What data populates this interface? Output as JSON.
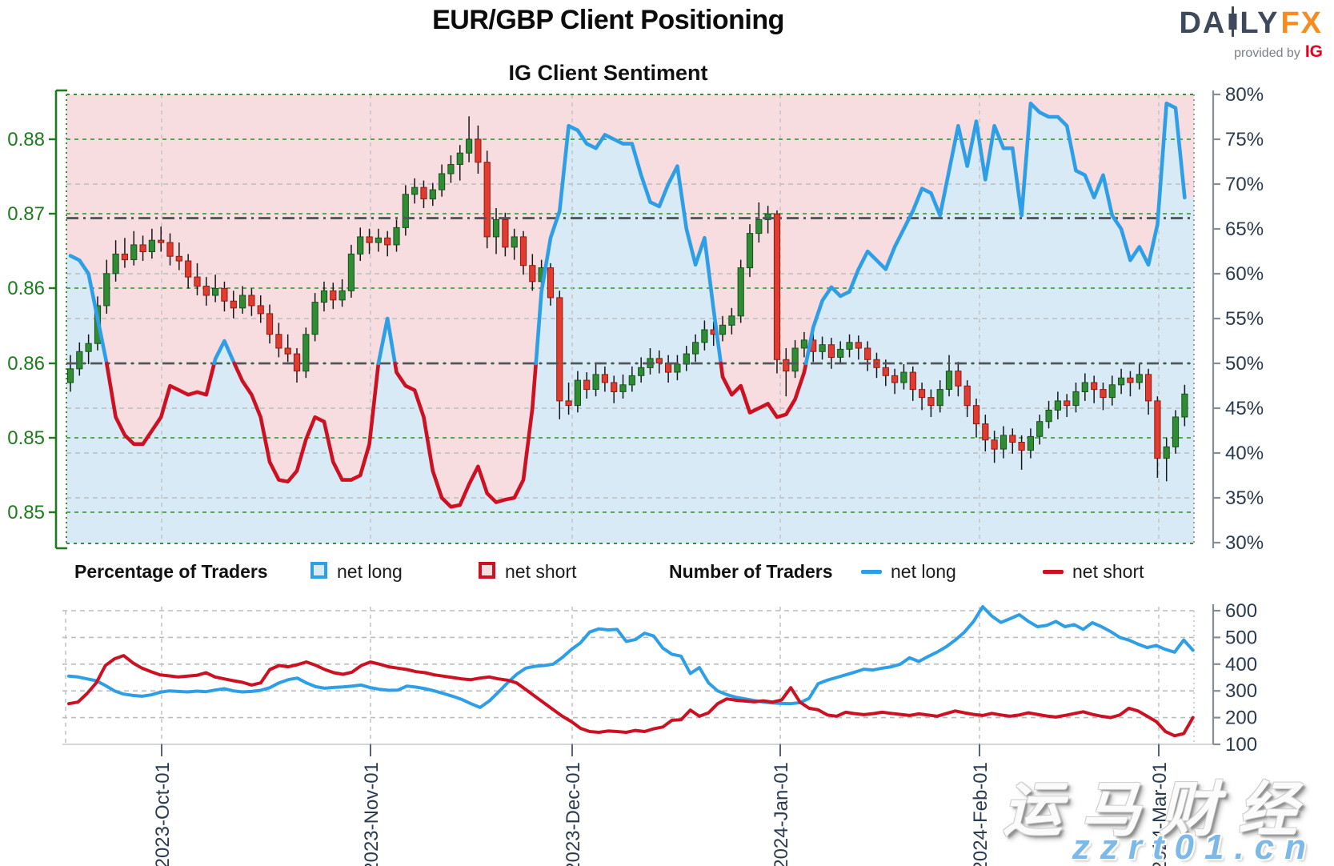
{
  "header": {
    "title": "EUR/GBP Client Positioning",
    "subtitle": "IG Client Sentiment"
  },
  "logo": {
    "part1": "DA",
    "part2": "LY",
    "part3": "FX",
    "provided": "provided by",
    "ig": "IG"
  },
  "legend": {
    "pct_heading": "Percentage of Traders",
    "pct_net_long": "net long",
    "pct_net_short": "net short",
    "num_heading": "Number of Traders",
    "num_net_long": "net long",
    "num_net_short": "net short"
  },
  "watermark": {
    "brand": "运马财经",
    "site": "zzrt01.cn"
  },
  "colors": {
    "net_long_blue": "#2e9fe6",
    "net_short_red": "#cc1122",
    "candle_up": "#2f8b34",
    "candle_down": "#e23c30",
    "bg_above_line_pink": "#f8dde0",
    "bg_below_line_blue": "#d8eaf6",
    "price_axis_green": "#1e7a1e",
    "pct_axis_navy": "#2b3b4f",
    "logo_slate": "#3e4a5b",
    "logo_orange": "#f68b1f",
    "ig_red": "#e8001c"
  },
  "chart_data": [
    {
      "type": "candlestick+line",
      "title": "IG Client Sentiment",
      "price_axis": {
        "side": "left",
        "tick_labels": [
          "0.88",
          "0.87",
          "0.86",
          "0.86",
          "0.85",
          "0.85"
        ]
      },
      "percent_axis": {
        "side": "right",
        "ticks": [
          80,
          75,
          70,
          65,
          60,
          55,
          50,
          45,
          40,
          35,
          30
        ],
        "suffix": "%"
      },
      "x_axis": {
        "tick_labels": [
          "2023-Oct-01",
          "2023-Nov-01",
          "2023-Dec-01",
          "2024-Jan-01",
          "2024-Feb-01",
          "2024-Mar-01"
        ]
      },
      "reference_lines": [
        {
          "axis": "percent",
          "value": 50
        },
        {
          "axis": "percent",
          "value": 66.2
        }
      ],
      "ohlc": [
        [
          0.8588,
          0.8612,
          0.858,
          0.86
        ],
        [
          0.86,
          0.8623,
          0.8594,
          0.8615
        ],
        [
          0.8615,
          0.863,
          0.8604,
          0.8622
        ],
        [
          0.8622,
          0.8663,
          0.8616,
          0.8655
        ],
        [
          0.8655,
          0.8695,
          0.8648,
          0.8683
        ],
        [
          0.8683,
          0.8712,
          0.8676,
          0.87
        ],
        [
          0.87,
          0.8714,
          0.8688,
          0.8695
        ],
        [
          0.8695,
          0.872,
          0.869,
          0.8708
        ],
        [
          0.8708,
          0.8716,
          0.8694,
          0.8702
        ],
        [
          0.8702,
          0.8722,
          0.8696,
          0.8712
        ],
        [
          0.8712,
          0.8724,
          0.8702,
          0.871
        ],
        [
          0.871,
          0.8718,
          0.869,
          0.8698
        ],
        [
          0.8698,
          0.871,
          0.8686,
          0.8694
        ],
        [
          0.8694,
          0.87,
          0.867,
          0.868
        ],
        [
          0.868,
          0.8692,
          0.8664,
          0.8672
        ],
        [
          0.8672,
          0.868,
          0.8655,
          0.8664
        ],
        [
          0.8664,
          0.8682,
          0.8658,
          0.867
        ],
        [
          0.867,
          0.8676,
          0.865,
          0.8659
        ],
        [
          0.8659,
          0.8668,
          0.8644,
          0.8653
        ],
        [
          0.8653,
          0.8672,
          0.8648,
          0.8664
        ],
        [
          0.8664,
          0.867,
          0.8646,
          0.8655
        ],
        [
          0.8655,
          0.8664,
          0.864,
          0.8648
        ],
        [
          0.8648,
          0.8656,
          0.8622,
          0.863
        ],
        [
          0.863,
          0.864,
          0.861,
          0.8618
        ],
        [
          0.8618,
          0.863,
          0.8606,
          0.8613
        ],
        [
          0.8613,
          0.8618,
          0.8588,
          0.8598
        ],
        [
          0.8598,
          0.8636,
          0.8592,
          0.863
        ],
        [
          0.863,
          0.8666,
          0.8624,
          0.8658
        ],
        [
          0.8658,
          0.8676,
          0.865,
          0.8668
        ],
        [
          0.8668,
          0.8675,
          0.8652,
          0.866
        ],
        [
          0.866,
          0.8678,
          0.8654,
          0.8668
        ],
        [
          0.8668,
          0.8708,
          0.8662,
          0.87
        ],
        [
          0.87,
          0.8723,
          0.8694,
          0.8715
        ],
        [
          0.8715,
          0.8722,
          0.87,
          0.871
        ],
        [
          0.871,
          0.8722,
          0.8702,
          0.8714
        ],
        [
          0.8714,
          0.872,
          0.8698,
          0.8708
        ],
        [
          0.8708,
          0.873,
          0.8702,
          0.8723
        ],
        [
          0.8723,
          0.876,
          0.8716,
          0.8752
        ],
        [
          0.8752,
          0.8766,
          0.8744,
          0.8758
        ],
        [
          0.8758,
          0.8764,
          0.874,
          0.8748
        ],
        [
          0.8748,
          0.8762,
          0.8742,
          0.8756
        ],
        [
          0.8756,
          0.8778,
          0.875,
          0.877
        ],
        [
          0.877,
          0.8786,
          0.8762,
          0.8778
        ],
        [
          0.8778,
          0.8795,
          0.8764,
          0.8788
        ],
        [
          0.8788,
          0.882,
          0.878,
          0.88
        ],
        [
          0.88,
          0.8812,
          0.877,
          0.878
        ],
        [
          0.878,
          0.879,
          0.8705,
          0.8715
        ],
        [
          0.8715,
          0.874,
          0.87,
          0.873
        ],
        [
          0.873,
          0.8736,
          0.8698,
          0.8706
        ],
        [
          0.8706,
          0.8722,
          0.8695,
          0.8715
        ],
        [
          0.8715,
          0.872,
          0.8682,
          0.869
        ],
        [
          0.869,
          0.87,
          0.8668,
          0.8676
        ],
        [
          0.8676,
          0.8695,
          0.866,
          0.8688
        ],
        [
          0.8688,
          0.8692,
          0.8655,
          0.8662
        ],
        [
          0.8662,
          0.8668,
          0.8556,
          0.8572
        ],
        [
          0.8572,
          0.8588,
          0.856,
          0.8568
        ],
        [
          0.8568,
          0.8598,
          0.8562,
          0.859
        ],
        [
          0.859,
          0.8597,
          0.8574,
          0.8582
        ],
        [
          0.8582,
          0.8604,
          0.8576,
          0.8595
        ],
        [
          0.8595,
          0.8602,
          0.858,
          0.8588
        ],
        [
          0.8588,
          0.8594,
          0.857,
          0.858
        ],
        [
          0.858,
          0.8595,
          0.8574,
          0.8586
        ],
        [
          0.8586,
          0.8602,
          0.858,
          0.8594
        ],
        [
          0.8594,
          0.861,
          0.8588,
          0.8601
        ],
        [
          0.8601,
          0.8618,
          0.8595,
          0.8609
        ],
        [
          0.8609,
          0.8616,
          0.8596,
          0.8605
        ],
        [
          0.8605,
          0.8612,
          0.8588,
          0.8597
        ],
        [
          0.8597,
          0.8612,
          0.859,
          0.8604
        ],
        [
          0.8604,
          0.862,
          0.8598,
          0.8613
        ],
        [
          0.8613,
          0.863,
          0.8606,
          0.8623
        ],
        [
          0.8623,
          0.8642,
          0.8616,
          0.8634
        ],
        [
          0.8634,
          0.8641,
          0.862,
          0.863
        ],
        [
          0.863,
          0.8646,
          0.8624,
          0.8638
        ],
        [
          0.8638,
          0.8653,
          0.863,
          0.8646
        ],
        [
          0.8646,
          0.8695,
          0.864,
          0.8688
        ],
        [
          0.8688,
          0.8726,
          0.868,
          0.8718
        ],
        [
          0.8718,
          0.8745,
          0.871,
          0.873
        ],
        [
          0.873,
          0.8742,
          0.8718,
          0.8735
        ],
        [
          0.8735,
          0.8738,
          0.8596,
          0.8608
        ],
        [
          0.8608,
          0.8618,
          0.8576,
          0.8598
        ],
        [
          0.8598,
          0.8625,
          0.8592,
          0.8618
        ],
        [
          0.8618,
          0.8632,
          0.861,
          0.8625
        ],
        [
          0.8625,
          0.8631,
          0.8606,
          0.8615
        ],
        [
          0.8615,
          0.8628,
          0.8608,
          0.8621
        ],
        [
          0.8621,
          0.8627,
          0.86,
          0.861
        ],
        [
          0.861,
          0.8624,
          0.8604,
          0.8617
        ],
        [
          0.8617,
          0.863,
          0.861,
          0.8623
        ],
        [
          0.8623,
          0.8629,
          0.8608,
          0.8618
        ],
        [
          0.8618,
          0.8624,
          0.8598,
          0.8608
        ],
        [
          0.8608,
          0.8614,
          0.8592,
          0.8601
        ],
        [
          0.8601,
          0.8608,
          0.8585,
          0.8594
        ],
        [
          0.8594,
          0.86,
          0.8578,
          0.8588
        ],
        [
          0.8588,
          0.8604,
          0.8582,
          0.8597
        ],
        [
          0.8597,
          0.8602,
          0.8572,
          0.8582
        ],
        [
          0.8582,
          0.8588,
          0.8564,
          0.8575
        ],
        [
          0.8575,
          0.8582,
          0.8558,
          0.8568
        ],
        [
          0.8568,
          0.859,
          0.8562,
          0.8582
        ],
        [
          0.8582,
          0.8612,
          0.8576,
          0.8598
        ],
        [
          0.8598,
          0.8606,
          0.8576,
          0.8585
        ],
        [
          0.8585,
          0.859,
          0.8558,
          0.8568
        ],
        [
          0.8568,
          0.8574,
          0.854,
          0.8552
        ],
        [
          0.8552,
          0.856,
          0.8528,
          0.8538
        ],
        [
          0.8538,
          0.8546,
          0.8518,
          0.853
        ],
        [
          0.853,
          0.855,
          0.8522,
          0.8542
        ],
        [
          0.8542,
          0.8548,
          0.8526,
          0.8536
        ],
        [
          0.8536,
          0.8542,
          0.8512,
          0.8529
        ],
        [
          0.8529,
          0.8548,
          0.8522,
          0.8541
        ],
        [
          0.8541,
          0.856,
          0.8534,
          0.8554
        ],
        [
          0.8554,
          0.8572,
          0.8548,
          0.8564
        ],
        [
          0.8564,
          0.858,
          0.8556,
          0.8572
        ],
        [
          0.8572,
          0.8578,
          0.8558,
          0.8568
        ],
        [
          0.8568,
          0.8588,
          0.8562,
          0.858
        ],
        [
          0.858,
          0.8596,
          0.8572,
          0.8588
        ],
        [
          0.8588,
          0.8594,
          0.857,
          0.8582
        ],
        [
          0.8582,
          0.8588,
          0.8564,
          0.8575
        ],
        [
          0.8575,
          0.8594,
          0.8568,
          0.8586
        ],
        [
          0.8586,
          0.86,
          0.8578,
          0.8592
        ],
        [
          0.8592,
          0.8598,
          0.8576,
          0.8588
        ],
        [
          0.8588,
          0.8604,
          0.8582,
          0.8595
        ],
        [
          0.8595,
          0.86,
          0.856,
          0.8572
        ],
        [
          0.8572,
          0.8576,
          0.8505,
          0.8522
        ],
        [
          0.8522,
          0.854,
          0.8502,
          0.8532
        ],
        [
          0.8532,
          0.8564,
          0.8526,
          0.8558
        ],
        [
          0.8558,
          0.8586,
          0.855,
          0.8578
        ]
      ],
      "sentiment_pct": [
        62,
        61.5,
        60,
        55,
        50,
        44,
        42,
        41,
        41,
        42.5,
        44,
        47.5,
        47,
        46.5,
        46.8,
        46.5,
        50.5,
        52.5,
        50.2,
        48,
        46.5,
        44,
        39,
        37,
        36.8,
        38,
        41.5,
        44,
        43.5,
        39,
        37,
        37,
        37.5,
        41,
        50,
        55,
        49,
        47.5,
        47,
        44,
        38,
        35,
        34,
        34.2,
        36.5,
        38.5,
        35.5,
        34.5,
        34.8,
        35,
        37,
        45,
        58,
        64,
        67,
        76.5,
        76,
        74.5,
        74,
        75.5,
        75,
        74.5,
        74.5,
        71,
        68,
        67.5,
        70,
        72,
        65,
        61,
        64,
        56,
        48.5,
        46.5,
        47.5,
        44.5,
        45,
        45.5,
        44,
        44.3,
        46,
        49,
        54,
        57,
        58.5,
        57.5,
        58,
        60.5,
        62.5,
        61.5,
        60.5,
        63,
        65,
        67,
        69.5,
        69,
        66.5,
        71.5,
        76.5,
        72,
        77,
        70.5,
        76.5,
        74,
        74,
        66.5,
        79,
        78,
        77.5,
        77.5,
        76.5,
        71.5,
        71,
        68.5,
        71,
        66.5,
        65,
        61.5,
        63,
        61,
        65.5,
        79,
        78.5,
        68.5
      ]
    },
    {
      "type": "line",
      "title": "Number of Traders",
      "y_axis": {
        "side": "right",
        "ticks": [
          600,
          500,
          400,
          300,
          200,
          100
        ]
      },
      "series": [
        {
          "name": "net long",
          "values": [
            355,
            352,
            345,
            338,
            320,
            300,
            288,
            283,
            280,
            285,
            295,
            300,
            298,
            296,
            299,
            297,
            303,
            308,
            300,
            296,
            298,
            302,
            312,
            330,
            342,
            348,
            330,
            316,
            310,
            313,
            315,
            318,
            322,
            312,
            306,
            302,
            303,
            318,
            314,
            308,
            300,
            290,
            280,
            268,
            252,
            238,
            262,
            295,
            330,
            362,
            385,
            392,
            395,
            400,
            425,
            455,
            480,
            520,
            532,
            528,
            530,
            485,
            492,
            516,
            505,
            460,
            437,
            430,
            365,
            387,
            330,
            300,
            286,
            276,
            270,
            264,
            258,
            255,
            253,
            252,
            256,
            272,
            327,
            340,
            350,
            360,
            370,
            381,
            378,
            385,
            390,
            400,
            424,
            410,
            428,
            445,
            465,
            490,
            520,
            560,
            615,
            580,
            556,
            570,
            585,
            560,
            540,
            545,
            560,
            540,
            548,
            530,
            555,
            540,
            522,
            500,
            490,
            475,
            462,
            470,
            455,
            445,
            490,
            452
          ]
        },
        {
          "name": "net short",
          "values": [
            252,
            258,
            290,
            330,
            395,
            420,
            432,
            405,
            385,
            372,
            360,
            356,
            352,
            355,
            358,
            368,
            352,
            345,
            338,
            332,
            322,
            330,
            380,
            395,
            390,
            398,
            408,
            396,
            380,
            368,
            362,
            370,
            395,
            408,
            400,
            390,
            385,
            380,
            372,
            368,
            360,
            355,
            350,
            345,
            342,
            348,
            352,
            345,
            340,
            330,
            305,
            280,
            255,
            230,
            205,
            185,
            160,
            148,
            145,
            150,
            148,
            145,
            152,
            148,
            158,
            165,
            190,
            192,
            228,
            205,
            218,
            252,
            270,
            265,
            262,
            259,
            263,
            258,
            266,
            312,
            258,
            235,
            229,
            210,
            205,
            220,
            215,
            211,
            215,
            220,
            216,
            212,
            208,
            214,
            210,
            205,
            215,
            225,
            218,
            212,
            208,
            216,
            210,
            205,
            210,
            218,
            212,
            206,
            202,
            208,
            215,
            222,
            212,
            205,
            200,
            210,
            235,
            225,
            205,
            185,
            148,
            132,
            140,
            200
          ]
        }
      ]
    }
  ]
}
